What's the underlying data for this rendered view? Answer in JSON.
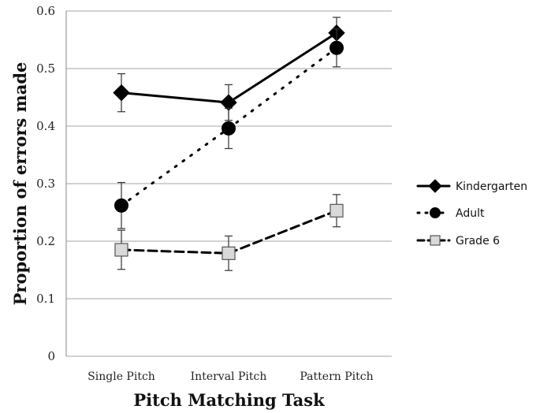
{
  "chart_data": {
    "type": "line",
    "title": "",
    "xlabel": "Pitch Matching Task",
    "ylabel": "Proportion of errors made",
    "categories": [
      "Single Pitch",
      "Interval Pitch",
      "Pattern Pitch"
    ],
    "ylim": [
      0,
      0.6
    ],
    "yticks": [
      "0",
      "0.1",
      "0.2",
      "0.3",
      "0.4",
      "0.5",
      "0.6"
    ],
    "grid": true,
    "legend_position": "right",
    "series": [
      {
        "name": "Kindergarten",
        "values": [
          0.458,
          0.441,
          0.562
        ],
        "errors": [
          0.033,
          0.031,
          0.027
        ],
        "marker": "diamond",
        "line": "solid",
        "color": "#000000",
        "fill": "#000000"
      },
      {
        "name": "Adult",
        "values": [
          0.262,
          0.396,
          0.536
        ],
        "errors": [
          0.04,
          0.035,
          0.033
        ],
        "marker": "circle",
        "line": "dotted",
        "color": "#000000",
        "fill": "#000000"
      },
      {
        "name": "Grade 6",
        "values": [
          0.185,
          0.179,
          0.253
        ],
        "errors": [
          0.034,
          0.03,
          0.028
        ],
        "marker": "square",
        "line": "dashed",
        "color": "#000000",
        "fill": "#d9d9d9"
      }
    ]
  }
}
